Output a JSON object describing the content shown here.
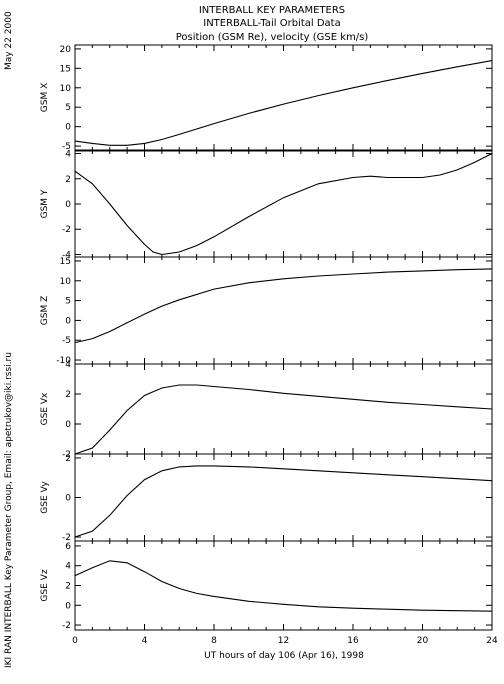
{
  "header": {
    "title": "INTERBALL KEY PARAMETERS",
    "subtitle": "INTERBALL-Tail Orbital Data",
    "subtitle2": "Position (GSM Re), velocity (GSE km/s)"
  },
  "side_text": {
    "date": "May 22 2000",
    "credit": "IKI RAN INTERBALL Key Parameter Group, Email: apetrukov@iki.rssi.ru"
  },
  "colors": {
    "line": "#000000",
    "background": "#ffffff"
  },
  "chart_data": {
    "type": "line",
    "xlabel": "UT hours of day 106 (Apr 16), 1998",
    "xlim": [
      0,
      24
    ],
    "xticks": [
      0,
      4,
      8,
      12,
      16,
      20,
      24
    ],
    "panels": [
      {
        "ylabel": "GSM X",
        "ylim": [
          -6,
          21
        ],
        "yticks": [
          -5,
          0,
          5,
          10,
          15,
          20
        ],
        "x": [
          0,
          1,
          2,
          3,
          4,
          5,
          6,
          8,
          10,
          12,
          14,
          16,
          18,
          20,
          22,
          24
        ],
        "y": [
          -3.7,
          -4.3,
          -4.8,
          -4.8,
          -4.3,
          -3.3,
          -2.0,
          0.8,
          3.4,
          5.8,
          8.0,
          10.0,
          11.9,
          13.7,
          15.4,
          17.0
        ]
      },
      {
        "ylabel": "GSM Y",
        "ylim": [
          -4.2,
          4.2
        ],
        "yticks": [
          -4,
          -2,
          0,
          2,
          4
        ],
        "x": [
          0,
          1,
          2,
          3,
          4,
          4.5,
          5,
          6,
          7,
          8,
          10,
          12,
          14,
          16,
          17,
          18,
          19,
          20,
          21,
          22,
          23,
          24
        ],
        "y": [
          2.6,
          1.6,
          0.0,
          -1.7,
          -3.2,
          -3.8,
          -4.0,
          -3.8,
          -3.3,
          -2.6,
          -1.0,
          0.5,
          1.6,
          2.1,
          2.2,
          2.1,
          2.1,
          2.1,
          2.3,
          2.7,
          3.3,
          4.0
        ]
      },
      {
        "ylabel": "GSM Z",
        "ylim": [
          -11,
          16
        ],
        "yticks": [
          -10,
          -5,
          0,
          5,
          10,
          15
        ],
        "x": [
          0,
          1,
          2,
          3,
          4,
          5,
          6,
          8,
          10,
          12,
          14,
          16,
          18,
          20,
          22,
          24
        ],
        "y": [
          -5.6,
          -4.6,
          -2.8,
          -0.6,
          1.6,
          3.6,
          5.2,
          7.9,
          9.5,
          10.5,
          11.2,
          11.7,
          12.2,
          12.5,
          12.8,
          13.0
        ]
      },
      {
        "ylabel": "GSE Vx",
        "ylim": [
          -2,
          4
        ],
        "yticks": [
          -2,
          0,
          2,
          4
        ],
        "x": [
          0,
          1,
          2,
          3,
          4,
          5,
          6,
          7,
          8,
          10,
          12,
          14,
          16,
          18,
          20,
          22,
          24
        ],
        "y": [
          -2.0,
          -1.6,
          -0.4,
          0.9,
          1.9,
          2.4,
          2.6,
          2.6,
          2.5,
          2.3,
          2.05,
          1.85,
          1.65,
          1.45,
          1.3,
          1.15,
          1.0
        ]
      },
      {
        "ylabel": "GSE Vy",
        "ylim": [
          -2.2,
          2.2
        ],
        "yticks": [
          -2,
          0,
          2
        ],
        "x": [
          0,
          1,
          2,
          3,
          4,
          5,
          6,
          7,
          8,
          10,
          12,
          14,
          16,
          18,
          20,
          22,
          24
        ],
        "y": [
          -2.0,
          -1.7,
          -0.9,
          0.1,
          0.9,
          1.35,
          1.55,
          1.6,
          1.6,
          1.55,
          1.45,
          1.35,
          1.25,
          1.15,
          1.05,
          0.95,
          0.85
        ]
      },
      {
        "ylabel": "GSE Vz",
        "ylim": [
          -2.5,
          6.5
        ],
        "yticks": [
          -2,
          0,
          2,
          4,
          6
        ],
        "x": [
          0,
          1,
          2,
          3,
          4,
          5,
          6,
          7,
          8,
          10,
          12,
          14,
          16,
          18,
          20,
          22,
          24
        ],
        "y": [
          3.0,
          3.8,
          4.5,
          4.3,
          3.4,
          2.4,
          1.7,
          1.2,
          0.9,
          0.4,
          0.1,
          -0.15,
          -0.3,
          -0.4,
          -0.5,
          -0.55,
          -0.6
        ]
      }
    ]
  }
}
